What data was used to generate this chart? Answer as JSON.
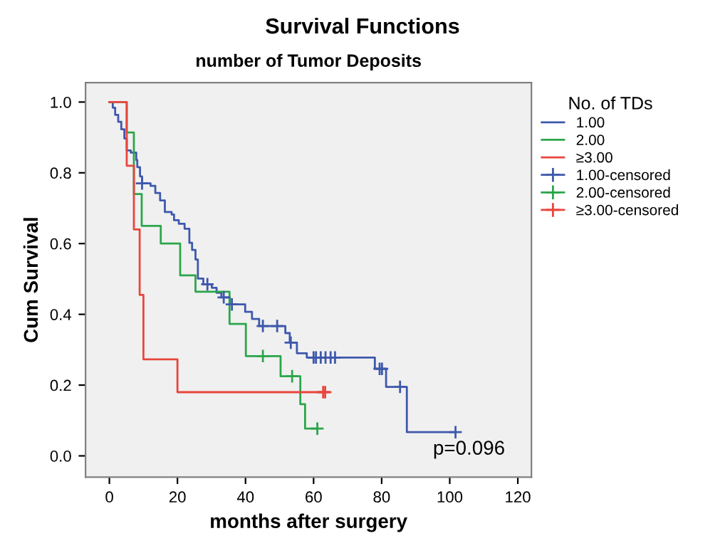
{
  "chart_data": {
    "type": "step",
    "title": "Survival Functions",
    "subtitle": "number of Tumor Deposits",
    "xlabel": "months after surgery",
    "ylabel": "Cum Survival",
    "legend_title": "No. of TDs",
    "legend": "right",
    "grid": false,
    "xlim": [
      -7,
      124
    ],
    "xticks": [
      0,
      20,
      40,
      60,
      80,
      100,
      120
    ],
    "ylim": [
      -0.06,
      1.055
    ],
    "yticks": [
      {
        "value": 0,
        "label": "0.0"
      },
      0.2,
      0.4,
      0.6,
      0.8,
      {
        "value": 1,
        "label": "1.0"
      }
    ],
    "annotations": [
      "p=0.096"
    ],
    "series": [
      {
        "name": "1.00",
        "color": "#3e58ac",
        "x": [
          0,
          1,
          1.7,
          2.6,
          3.5,
          4.4,
          5.1,
          6.3,
          7.9,
          8.2,
          9,
          9.6,
          12.1,
          13.5,
          14.9,
          16.3,
          18.3,
          19,
          20.4,
          22.1,
          23.5,
          24.3,
          25.3,
          26,
          27.6,
          30.1,
          31.5,
          32.9,
          35.4,
          39.9,
          41.9,
          44,
          51.7,
          53,
          55.1,
          58,
          78,
          81.3,
          87.4,
          101.7
        ],
        "values": [
          1,
          0.984,
          0.964,
          0.944,
          0.923,
          0.897,
          0.863,
          0.857,
          0.836,
          0.816,
          0.79,
          0.77,
          0.763,
          0.743,
          0.722,
          0.689,
          0.682,
          0.666,
          0.656,
          0.642,
          0.602,
          0.582,
          0.555,
          0.501,
          0.485,
          0.475,
          0.461,
          0.448,
          0.428,
          0.407,
          0.387,
          0.367,
          0.347,
          0.32,
          0.29,
          0.278,
          0.246,
          0.195,
          0.067,
          0.067
        ]
      },
      {
        "name": "2.00",
        "color": "#2ba64a",
        "x": [
          0,
          5.1,
          7.2,
          9.5,
          15.1,
          20.8,
          25.3,
          35.3,
          40.1,
          50.3,
          56.1,
          57.5,
          61.1
        ],
        "values": [
          1,
          0.914,
          0.74,
          0.65,
          0.6,
          0.51,
          0.464,
          0.373,
          0.282,
          0.225,
          0.146,
          0.077,
          0.077
        ]
      },
      {
        "name": "≥3.00",
        "color": "#e8453c",
        "x": [
          0,
          5.1,
          7.2,
          8.9,
          10,
          20,
          63.4
        ],
        "values": [
          1,
          0.82,
          0.64,
          0.455,
          0.273,
          0.18,
          0.18
        ]
      },
      {
        "name": "1.00-censored",
        "type": "scatter",
        "marker": "cross",
        "color": "#3e58ac",
        "x": [
          9.6,
          28.8,
          33.6,
          36,
          45.1,
          49.3,
          53.3,
          60,
          60.7,
          62.1,
          63.5,
          65,
          66.3,
          79.4,
          80.1,
          85.4,
          101.7
        ],
        "values": [
          0.77,
          0.485,
          0.448,
          0.428,
          0.367,
          0.367,
          0.32,
          0.278,
          0.278,
          0.278,
          0.278,
          0.278,
          0.278,
          0.246,
          0.246,
          0.195,
          0.067
        ]
      },
      {
        "name": "2.00-censored",
        "type": "scatter",
        "marker": "cross",
        "color": "#2ba64a",
        "x": [
          45.1,
          53.7,
          61.1
        ],
        "values": [
          0.282,
          0.225,
          0.077
        ]
      },
      {
        "name": "≥3.00-censored",
        "type": "scatter",
        "marker": "cross",
        "color": "#e8453c",
        "x": [
          62.8,
          63.4
        ],
        "values": [
          0.18,
          0.18
        ]
      }
    ]
  }
}
